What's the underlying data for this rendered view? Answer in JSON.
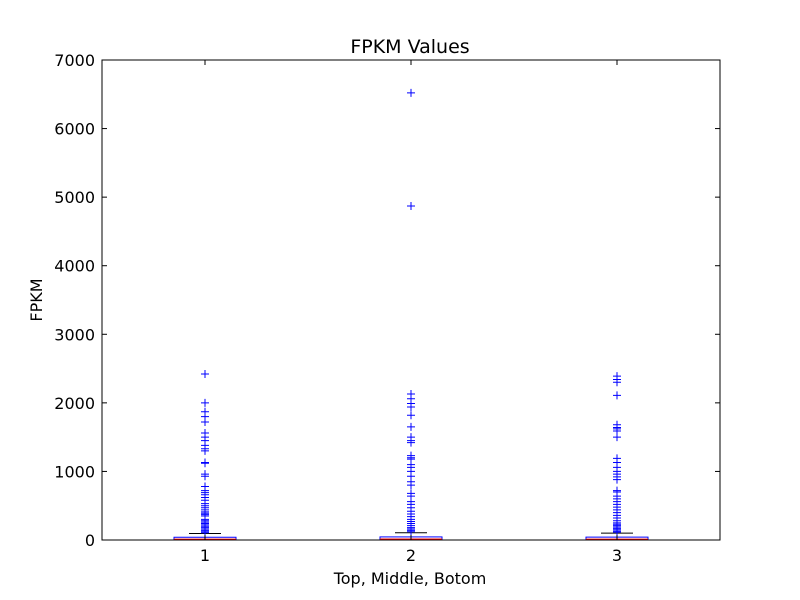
{
  "chart_data": {
    "type": "box",
    "title": "FPKM Values",
    "xlabel": "Top, Middle, Botom",
    "ylabel": "FPKM",
    "categories": [
      "1",
      "2",
      "3"
    ],
    "ylim": [
      0,
      7000
    ],
    "yticks": [
      "0",
      "1000",
      "2000",
      "3000",
      "4000",
      "5000",
      "6000",
      "7000"
    ],
    "grid": false,
    "colors": {
      "box": "#0000ff",
      "median": "#ff0000",
      "whisker": "#000000",
      "flier": "#0000ff",
      "axes": "#000000"
    },
    "series": [
      {
        "q1": 5,
        "median": 12,
        "q3": 40,
        "whisker_low": 0,
        "whisker_high": 95,
        "fliers": [
          2420,
          2000,
          1870,
          1800,
          1720,
          1560,
          1500,
          1450,
          1380,
          1330,
          1300,
          1130,
          1120,
          960,
          930,
          780,
          720,
          690,
          660,
          620,
          580,
          530,
          500,
          470,
          440,
          410,
          390,
          370,
          350,
          300,
          280,
          260,
          240,
          220,
          200,
          180,
          160,
          140,
          120,
          105
        ]
      },
      {
        "q1": 5,
        "median": 14,
        "q3": 45,
        "whisker_low": 0,
        "whisker_high": 105,
        "fliers": [
          6520,
          4870,
          2130,
          2060,
          1990,
          1940,
          1820,
          1650,
          1500,
          1450,
          1420,
          1230,
          1200,
          1180,
          1100,
          1060,
          1000,
          930,
          850,
          800,
          680,
          640,
          560,
          520,
          470,
          420,
          380,
          340,
          300,
          270,
          240,
          210,
          180,
          160,
          140,
          120
        ]
      },
      {
        "q1": 5,
        "median": 13,
        "q3": 42,
        "whisker_low": 0,
        "whisker_high": 100,
        "fliers": [
          2390,
          2340,
          2300,
          2110,
          1680,
          1640,
          1620,
          1590,
          1500,
          1190,
          1130,
          1060,
          1000,
          960,
          920,
          880,
          720,
          700,
          640,
          600,
          560,
          520,
          480,
          440,
          400,
          360,
          320,
          280,
          250,
          230,
          210,
          190,
          170,
          150,
          130,
          115
        ]
      }
    ]
  }
}
